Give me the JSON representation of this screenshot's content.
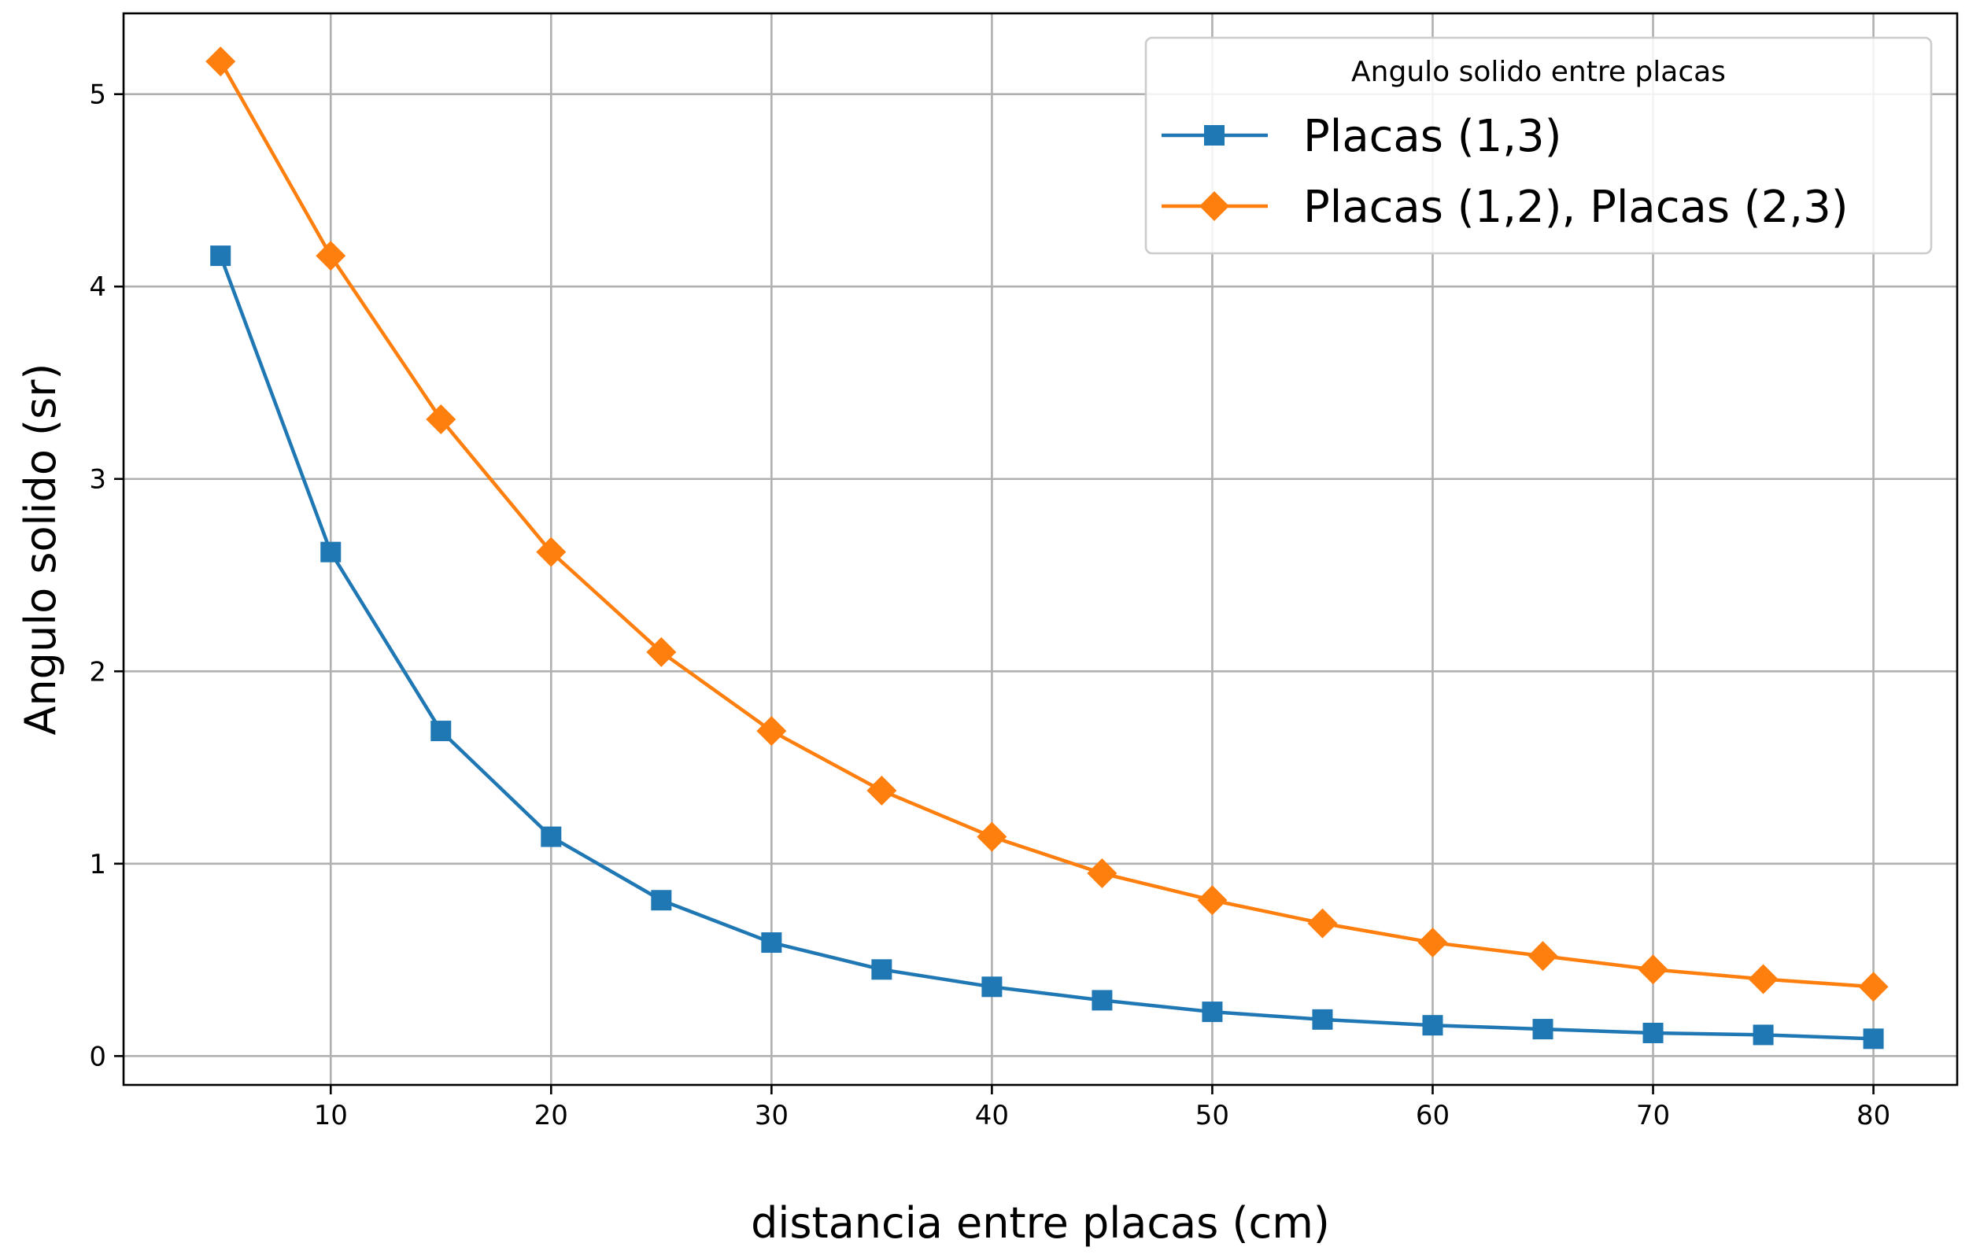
{
  "chart_data": {
    "type": "line",
    "title": "",
    "xlabel": "distancia entre placas (cm)",
    "ylabel": "Angulo solido (sr)",
    "xlim": [
      0.6,
      83.8
    ],
    "ylim": [
      -0.15,
      5.42
    ],
    "xticks": [
      10,
      20,
      30,
      40,
      50,
      60,
      70,
      80
    ],
    "yticks": [
      0,
      1,
      2,
      3,
      4,
      5
    ],
    "grid": true,
    "legend": {
      "title": "Angulo solido entre placas",
      "placement": "top-right"
    },
    "x": [
      5,
      10,
      15,
      20,
      25,
      30,
      35,
      40,
      45,
      50,
      55,
      60,
      65,
      70,
      75,
      80
    ],
    "series": [
      {
        "name": "Placas (1,3)",
        "color": "#1f77b4",
        "marker": "square",
        "values": [
          4.16,
          2.62,
          1.69,
          1.14,
          0.81,
          0.59,
          0.45,
          0.36,
          0.29,
          0.23,
          0.19,
          0.16,
          0.14,
          0.12,
          0.11,
          0.09
        ]
      },
      {
        "name": "Placas (1,2), Placas (2,3)",
        "color": "#ff7f0e",
        "marker": "diamond",
        "values": [
          5.17,
          4.16,
          3.31,
          2.62,
          2.1,
          1.69,
          1.38,
          1.14,
          0.95,
          0.81,
          0.69,
          0.59,
          0.52,
          0.45,
          0.4,
          0.36
        ]
      }
    ]
  }
}
